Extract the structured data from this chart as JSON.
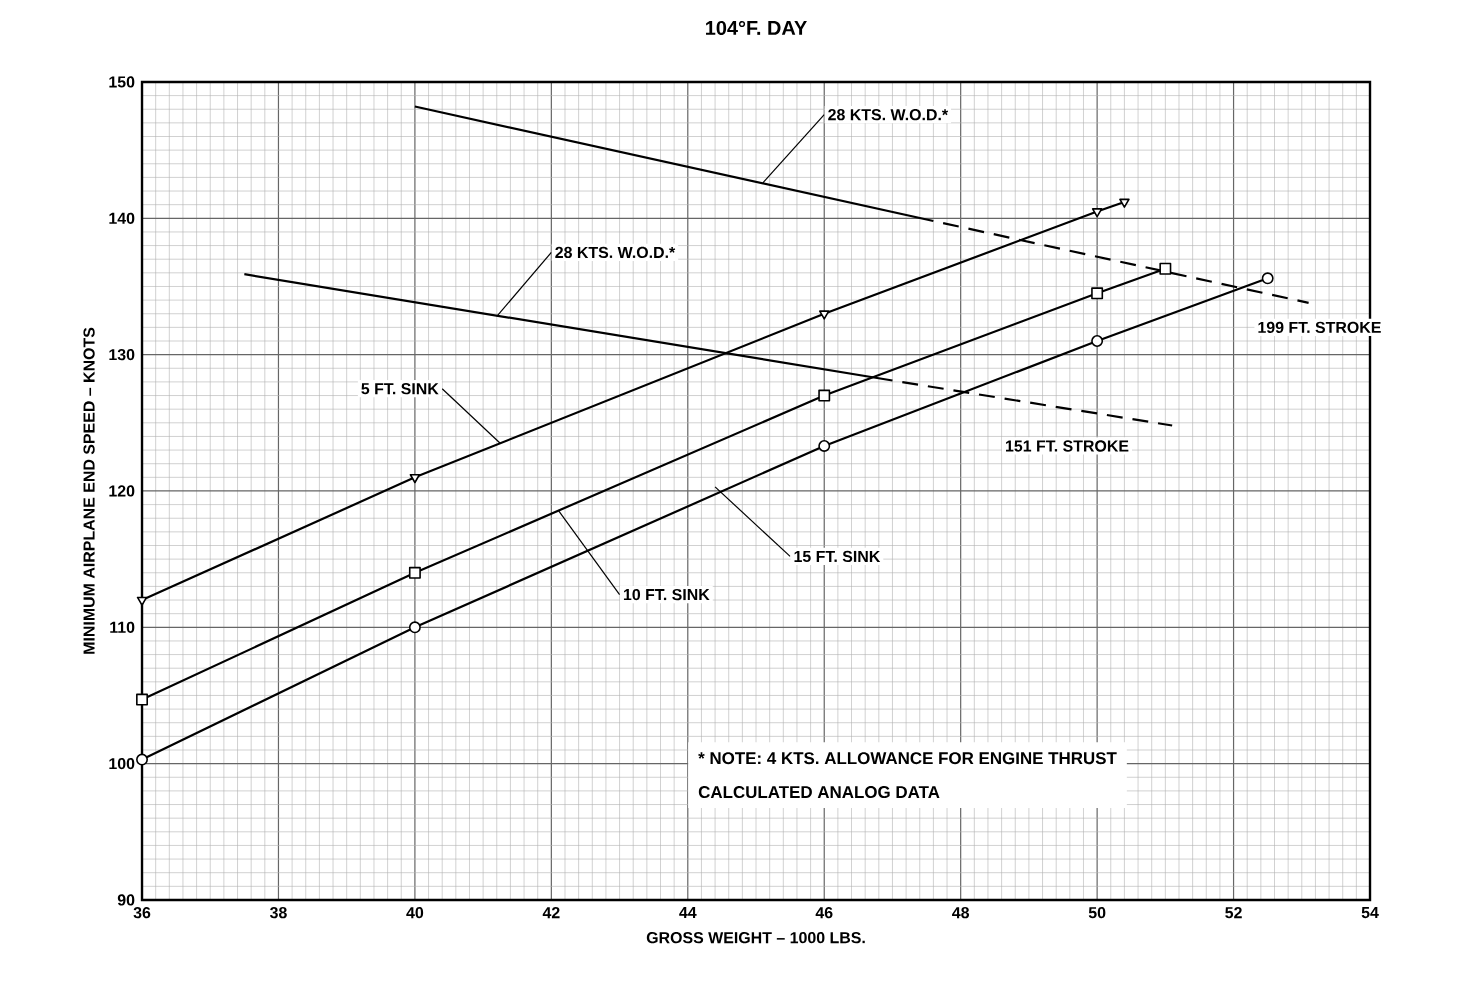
{
  "chart_data": {
    "type": "line",
    "title": "104°F. DAY",
    "xlabel": "GROSS WEIGHT – 1000 LBS.",
    "ylabel": "MINIMUM AIRPLANE END SPEED – KNOTS",
    "xlim": [
      36,
      54
    ],
    "ylim": [
      90,
      150
    ],
    "xticks": [
      36,
      38,
      40,
      42,
      44,
      46,
      48,
      50,
      52,
      54
    ],
    "yticks": [
      90,
      100,
      110,
      120,
      130,
      140,
      150
    ],
    "grid": true,
    "series": [
      {
        "color": "#000000",
        "marker": "triangle",
        "line_style": "solid",
        "x": [
          36,
          40,
          46,
          50,
          50.4
        ],
        "values": [
          112,
          121,
          133,
          140.5,
          141.2
        ]
      },
      {
        "color": "#000000",
        "marker": "square",
        "line_style": "solid",
        "x": [
          36,
          40,
          46,
          50,
          51.0
        ],
        "values": [
          104.7,
          114,
          127,
          134.5,
          136.3
        ]
      },
      {
        "color": "#000000",
        "marker": "circle",
        "line_style": "solid",
        "x": [
          36,
          40,
          46,
          50,
          52.5
        ],
        "values": [
          100.3,
          110,
          123.3,
          131,
          135.6
        ]
      },
      {
        "color": "#000000",
        "marker": "none",
        "line_style": "solid",
        "x": [
          40,
          47.6
        ],
        "values": [
          148.2,
          139.8
        ]
      },
      {
        "color": "#000000",
        "marker": "none",
        "line_style": "dashed",
        "x": [
          47.6,
          53.1
        ],
        "values": [
          139.8,
          133.8
        ]
      },
      {
        "color": "#000000",
        "marker": "none",
        "line_style": "solid",
        "x": [
          37.5,
          47
        ],
        "values": [
          135.9,
          128.1
        ]
      },
      {
        "color": "#000000",
        "marker": "none",
        "line_style": "dashed",
        "x": [
          47,
          51.1
        ],
        "values": [
          128.1,
          124.8
        ]
      }
    ],
    "annotations": [
      {
        "text": "28 KTS. W.O.D.*",
        "x": 45.1,
        "y": 142.6
      },
      {
        "text": "28 KTS. W.O.D.*",
        "x": 41.2,
        "y": 132.8
      },
      {
        "text": "5 FT. SINK",
        "x": 41.25,
        "y": 123.5
      },
      {
        "text": "10 FT. SINK",
        "x": 42.1,
        "y": 118.6
      },
      {
        "text": "15 FT. SINK",
        "x": 44.4,
        "y": 120.3
      },
      {
        "text": "199 FT. STROKE",
        "x": 53.1,
        "y": 133.8
      },
      {
        "text": "151 FT. STROKE",
        "x": 51.1,
        "y": 124.8
      },
      "* NOTE:  4 KTS. ALLOWANCE FOR ENGINE THRUST",
      "CALCULATED ANALOG DATA"
    ]
  }
}
